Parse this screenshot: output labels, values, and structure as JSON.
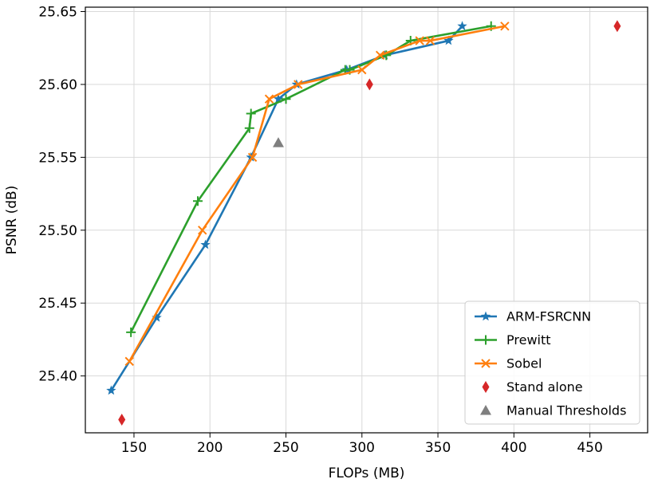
{
  "chart_data": {
    "type": "line",
    "title": "",
    "xlabel": "FLOPs (MB)",
    "ylabel": "PSNR (dB)",
    "xlim": [
      118,
      488
    ],
    "ylim": [
      25.361,
      25.653
    ],
    "xticks": [
      "150",
      "200",
      "250",
      "300",
      "350",
      "400",
      "450"
    ],
    "yticks": [
      "25.40",
      "25.45",
      "25.50",
      "25.55",
      "25.60",
      "25.65"
    ],
    "grid": true,
    "legend_position": "lower-right",
    "series": [
      {
        "name": "ARM-FSRCNN",
        "style": "line",
        "marker": "star",
        "color": "#1f77b4",
        "x": [
          135,
          165,
          197,
          227,
          245,
          257,
          290,
          315,
          357,
          366
        ],
        "y": [
          25.39,
          25.44,
          25.49,
          25.55,
          25.59,
          25.6,
          25.61,
          25.62,
          25.63,
          25.64
        ]
      },
      {
        "name": "Prewitt",
        "style": "line",
        "marker": "plus",
        "color": "#2ca02c",
        "x": [
          148,
          192,
          226,
          227,
          250,
          289,
          292,
          316,
          332,
          385
        ],
        "y": [
          25.43,
          25.52,
          25.57,
          25.58,
          25.59,
          25.61,
          25.61,
          25.62,
          25.63,
          25.64
        ]
      },
      {
        "name": "Sobel",
        "style": "line",
        "marker": "x",
        "color": "#ff7f0e",
        "x": [
          147,
          195,
          228,
          239,
          258,
          300,
          312,
          338,
          345,
          394
        ],
        "y": [
          25.41,
          25.5,
          25.55,
          25.59,
          25.6,
          25.61,
          25.62,
          25.63,
          25.63,
          25.64
        ]
      },
      {
        "name": "Stand alone",
        "style": "scatter",
        "marker": "diamond",
        "color": "#d62728",
        "x": [
          142,
          305,
          468
        ],
        "y": [
          25.37,
          25.6,
          25.64
        ]
      },
      {
        "name": "Manual Thresholds",
        "style": "scatter",
        "marker": "triangle",
        "color": "#7f7f7f",
        "x": [
          245
        ],
        "y": [
          25.56
        ]
      }
    ]
  }
}
